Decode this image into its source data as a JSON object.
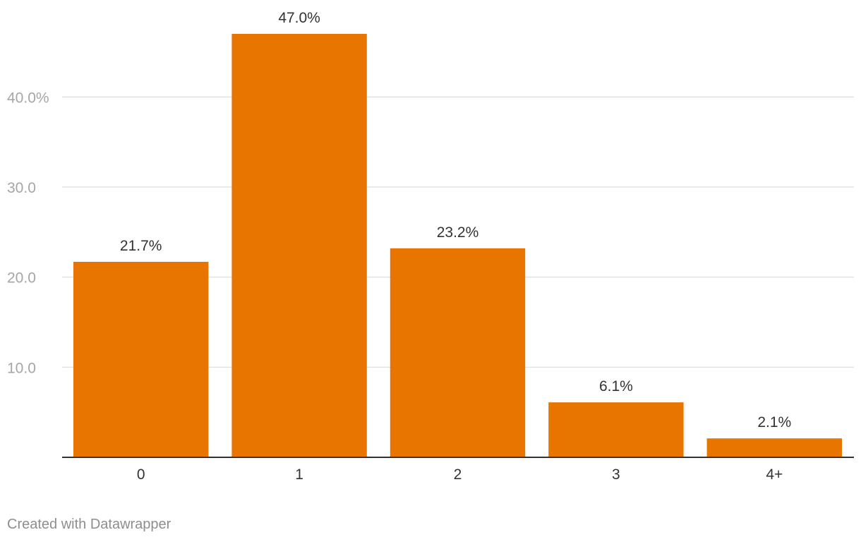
{
  "chart_data": {
    "type": "bar",
    "title": "",
    "xlabel": "",
    "ylabel": "",
    "categories": [
      "0",
      "1",
      "2",
      "3",
      "4+"
    ],
    "values": [
      21.7,
      47.0,
      23.2,
      6.1,
      2.1
    ],
    "value_labels": [
      "21.7%",
      "47.0%",
      "23.2%",
      "6.1%",
      "2.1%"
    ],
    "y_ticks": [
      10,
      20,
      30,
      40
    ],
    "y_tick_labels": [
      "10.0",
      "20.0",
      "30.0",
      "40.0%"
    ],
    "ylim": [
      0,
      47.0
    ],
    "grid": true,
    "colors": {
      "bar": "#e87500",
      "grid": "#e2e2e2",
      "tick_label": "#a6a6a6",
      "baseline": "#333333",
      "value_label": "#333333",
      "category_label": "#333333"
    }
  },
  "footer": {
    "credit": "Created with Datawrapper"
  }
}
